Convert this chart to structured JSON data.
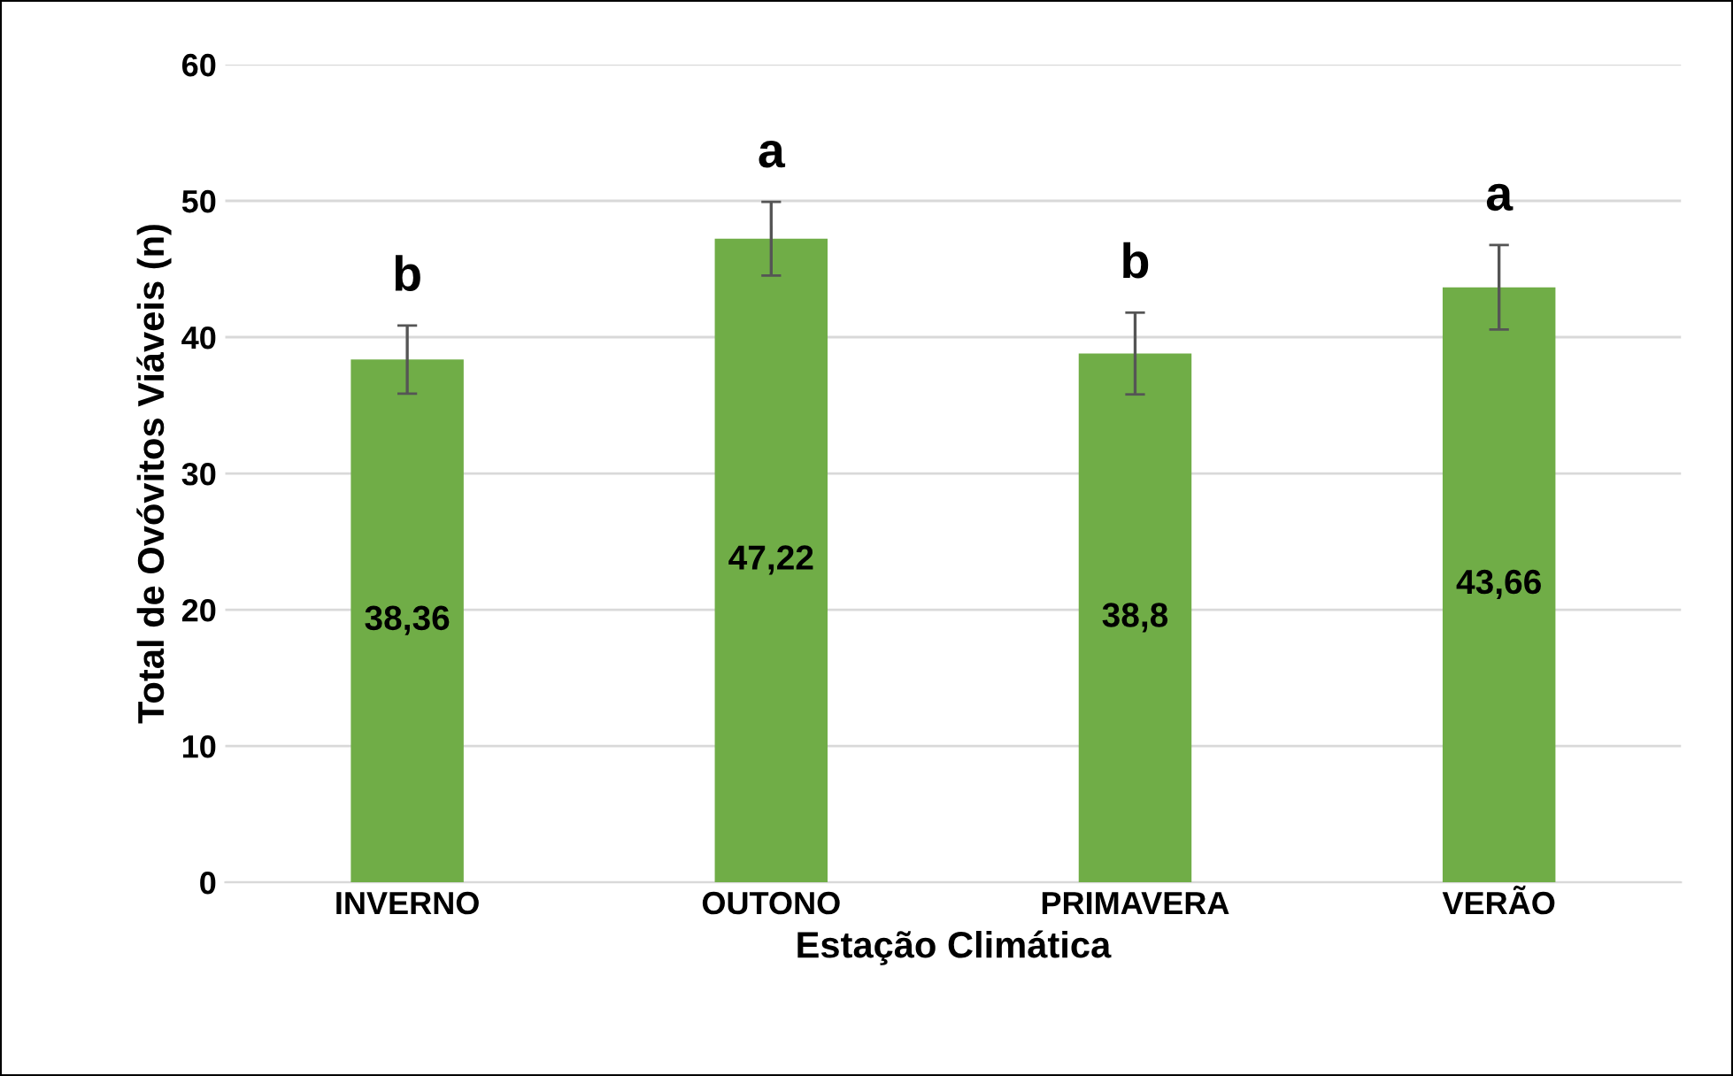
{
  "chart_data": {
    "type": "bar",
    "xlabel": "Estação Climática",
    "ylabel": "Total de Ovóvitos Viáveis (n)",
    "categories": [
      "INVERNO",
      "OUTONO",
      "PRIMAVERA",
      "VERÃO"
    ],
    "values": [
      38.36,
      47.22,
      38.8,
      43.66
    ],
    "value_labels": [
      "38,36",
      "47,22",
      "38,8",
      "43,66"
    ],
    "errors": [
      2.5,
      2.7,
      3.0,
      3.1
    ],
    "color": "#70ad47",
    "ylim": [
      0,
      60
    ],
    "yticks": [
      0,
      10,
      20,
      30,
      40,
      50,
      60
    ],
    "grid": "y",
    "annotations": [
      "b",
      "a",
      "b",
      "a"
    ]
  }
}
